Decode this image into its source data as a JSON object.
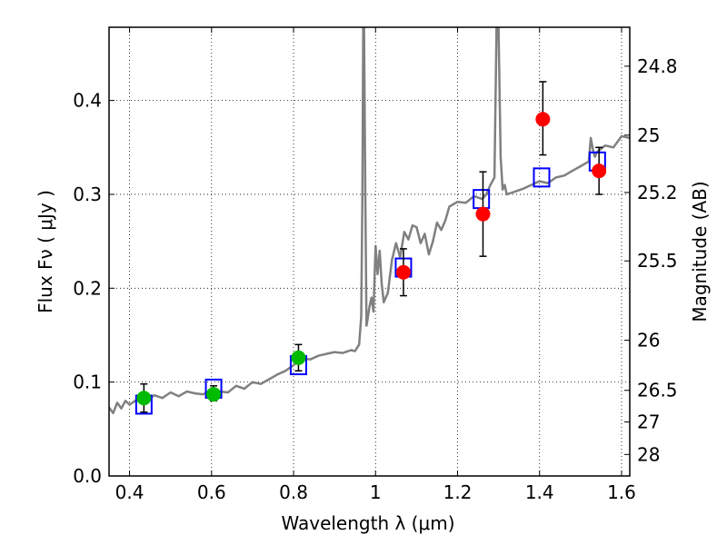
{
  "chart_data": {
    "type": "scatter",
    "xlabel": "Wavelength  λ (μm)",
    "ylabel": "Flux  Fν  ( μJy )",
    "ylabel_right": "Magnitude (AB)",
    "xlim": [
      0.35,
      1.62
    ],
    "ylim": [
      0.0,
      0.478
    ],
    "x_ticks": [
      0.4,
      0.6,
      0.8,
      1.0,
      1.2,
      1.4,
      1.6
    ],
    "x_tick_labels": [
      "0.4",
      "0.6",
      "0.8",
      "1",
      "1.2",
      "1.4",
      "1.6"
    ],
    "y_ticks": [
      0.0,
      0.1,
      0.2,
      0.3,
      0.4
    ],
    "y_tick_labels": [
      "0.0",
      "0.1",
      "0.2",
      "0.3",
      "0.4"
    ],
    "right_ticks": [
      {
        "label": "24.8",
        "mag": 24.8
      },
      {
        "label": "25",
        "mag": 25.0
      },
      {
        "label": "25.2",
        "mag": 25.2
      },
      {
        "label": "25.5",
        "mag": 25.5
      },
      {
        "label": "26",
        "mag": 26.0
      },
      {
        "label": "26.5",
        "mag": 26.5
      },
      {
        "label": "27",
        "mag": 27.0
      },
      {
        "label": "28",
        "mag": 28.0
      }
    ],
    "grid": true,
    "colors": {
      "spectrum": "#808080",
      "model_box": "#0000ff",
      "detection": "#00bb00",
      "nondetection": "#ff0000",
      "errorbar": "#000000"
    },
    "series": [
      {
        "kind": "line",
        "x": [
          0.35,
          0.36,
          0.37,
          0.38,
          0.39,
          0.4,
          0.42,
          0.44,
          0.46,
          0.48,
          0.5,
          0.52,
          0.54,
          0.56,
          0.58,
          0.6,
          0.62,
          0.64,
          0.66,
          0.68,
          0.7,
          0.72,
          0.74,
          0.76,
          0.78,
          0.8,
          0.82,
          0.84,
          0.86,
          0.88,
          0.9,
          0.92,
          0.94,
          0.95,
          0.96,
          0.965,
          0.968,
          0.97,
          0.972,
          0.975,
          0.978,
          0.98,
          0.985,
          0.99,
          0.995,
          1.0,
          1.005,
          1.01,
          1.015,
          1.02,
          1.03,
          1.04,
          1.05,
          1.06,
          1.07,
          1.08,
          1.09,
          1.1,
          1.11,
          1.12,
          1.13,
          1.14,
          1.15,
          1.16,
          1.17,
          1.18,
          1.2,
          1.22,
          1.24,
          1.26,
          1.27,
          1.28,
          1.29,
          1.295,
          1.3,
          1.305,
          1.31,
          1.315,
          1.32,
          1.34,
          1.36,
          1.38,
          1.4,
          1.42,
          1.44,
          1.46,
          1.48,
          1.5,
          1.52,
          1.525,
          1.53,
          1.535,
          1.54,
          1.56,
          1.58,
          1.6,
          1.62
        ],
        "y": [
          0.073,
          0.067,
          0.078,
          0.072,
          0.08,
          0.076,
          0.082,
          0.079,
          0.086,
          0.083,
          0.089,
          0.085,
          0.09,
          0.088,
          0.087,
          0.092,
          0.09,
          0.089,
          0.096,
          0.093,
          0.1,
          0.098,
          0.103,
          0.108,
          0.112,
          0.118,
          0.126,
          0.124,
          0.128,
          0.13,
          0.132,
          0.131,
          0.134,
          0.133,
          0.14,
          0.17,
          0.3,
          0.478,
          0.478,
          0.3,
          0.16,
          0.165,
          0.18,
          0.19,
          0.175,
          0.245,
          0.215,
          0.24,
          0.205,
          0.185,
          0.195,
          0.23,
          0.248,
          0.233,
          0.26,
          0.252,
          0.267,
          0.265,
          0.248,
          0.258,
          0.236,
          0.25,
          0.27,
          0.262,
          0.272,
          0.287,
          0.292,
          0.291,
          0.298,
          0.295,
          0.3,
          0.31,
          0.318,
          0.478,
          0.478,
          0.34,
          0.305,
          0.31,
          0.3,
          0.303,
          0.306,
          0.31,
          0.314,
          0.312,
          0.318,
          0.32,
          0.325,
          0.33,
          0.335,
          0.36,
          0.348,
          0.34,
          0.345,
          0.352,
          0.35,
          0.362,
          0.36
        ]
      },
      {
        "kind": "model_boxes",
        "x": [
          0.435,
          0.605,
          0.812,
          1.068,
          1.258,
          1.405,
          1.541
        ],
        "y": [
          0.076,
          0.093,
          0.118,
          0.222,
          0.295,
          0.318,
          0.335
        ]
      },
      {
        "kind": "points",
        "group": "detection",
        "x": [
          0.435,
          0.605,
          0.812
        ],
        "y": [
          0.083,
          0.087,
          0.126
        ],
        "yerr_low": [
          0.068,
          0.08,
          0.112
        ],
        "yerr_high": [
          0.098,
          0.096,
          0.14
        ]
      },
      {
        "kind": "points",
        "group": "nondetection",
        "x": [
          1.068,
          1.262,
          1.408,
          1.545
        ],
        "y": [
          0.217,
          0.279,
          0.38,
          0.325
        ],
        "yerr_low": [
          0.192,
          0.234,
          0.342,
          0.3
        ],
        "yerr_high": [
          0.242,
          0.324,
          0.42,
          0.35
        ]
      }
    ]
  }
}
